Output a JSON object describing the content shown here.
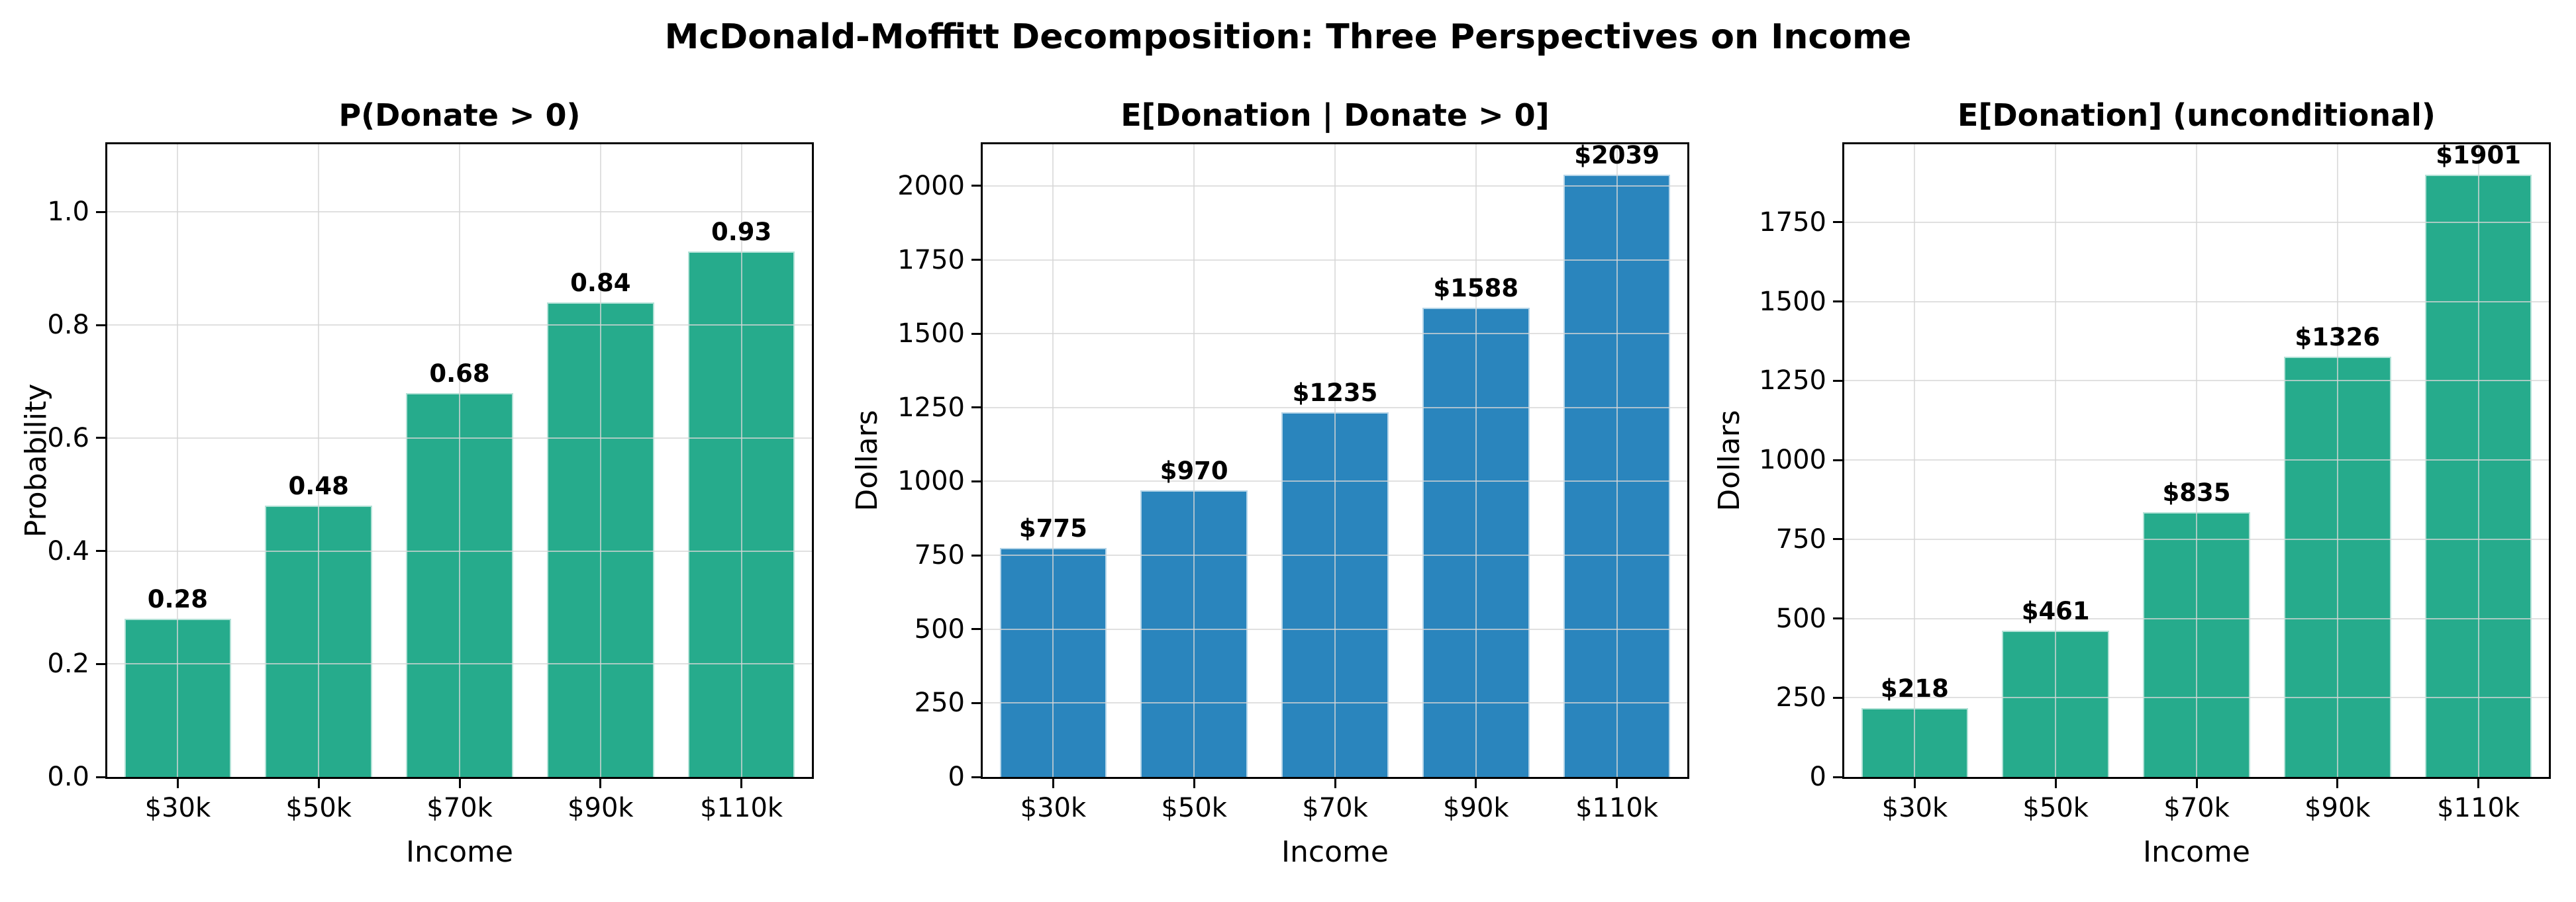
{
  "figure": {
    "title": "McDonald-Moffitt Decomposition: Three Perspectives on Income",
    "background_color": "#ffffff",
    "text_color": "#000000",
    "grid_color": "#d6d6d6"
  },
  "chart_data": [
    {
      "type": "bar",
      "title": "P(Donate > 0)",
      "xlabel": "Income",
      "ylabel": "Probability",
      "categories": [
        "$30k",
        "$50k",
        "$70k",
        "$90k",
        "$110k"
      ],
      "values": [
        0.28,
        0.48,
        0.68,
        0.84,
        0.93
      ],
      "bar_labels": [
        "0.28",
        "0.48",
        "0.68",
        "0.84",
        "0.93"
      ],
      "ytick_values": [
        0.0,
        0.2,
        0.4,
        0.6,
        0.8,
        1.0
      ],
      "ytick_labels": [
        "0.0",
        "0.2",
        "0.4",
        "0.6",
        "0.8",
        "1.0"
      ],
      "ylim": [
        0,
        1.12
      ],
      "bar_color": "#26ab8c",
      "grid": true,
      "legend": null
    },
    {
      "type": "bar",
      "title": "E[Donation | Donate > 0]",
      "xlabel": "Income",
      "ylabel": "Dollars",
      "categories": [
        "$30k",
        "$50k",
        "$70k",
        "$90k",
        "$110k"
      ],
      "values": [
        775,
        970,
        1235,
        1588,
        2039
      ],
      "bar_labels": [
        "$775",
        "$970",
        "$1235",
        "$1588",
        "$2039"
      ],
      "ytick_values": [
        0,
        250,
        500,
        750,
        1000,
        1250,
        1500,
        1750,
        2000
      ],
      "ytick_labels": [
        "0",
        "250",
        "500",
        "750",
        "1000",
        "1250",
        "1500",
        "1750",
        "2000"
      ],
      "ylim": [
        0,
        2141
      ],
      "bar_color": "#2a85bd",
      "grid": true,
      "legend": null
    },
    {
      "type": "bar",
      "title": "E[Donation] (unconditional)",
      "xlabel": "Income",
      "ylabel": "Dollars",
      "categories": [
        "$30k",
        "$50k",
        "$70k",
        "$90k",
        "$110k"
      ],
      "values": [
        218,
        461,
        835,
        1326,
        1901
      ],
      "bar_labels": [
        "$218",
        "$461",
        "$835",
        "$1326",
        "$1901"
      ],
      "ytick_values": [
        0,
        250,
        500,
        750,
        1000,
        1250,
        1500,
        1750
      ],
      "ytick_labels": [
        "0",
        "250",
        "500",
        "750",
        "1000",
        "1250",
        "1500",
        "1750"
      ],
      "ylim": [
        0,
        1996
      ],
      "bar_color": "#26ab8c",
      "grid": true,
      "legend": null
    }
  ]
}
